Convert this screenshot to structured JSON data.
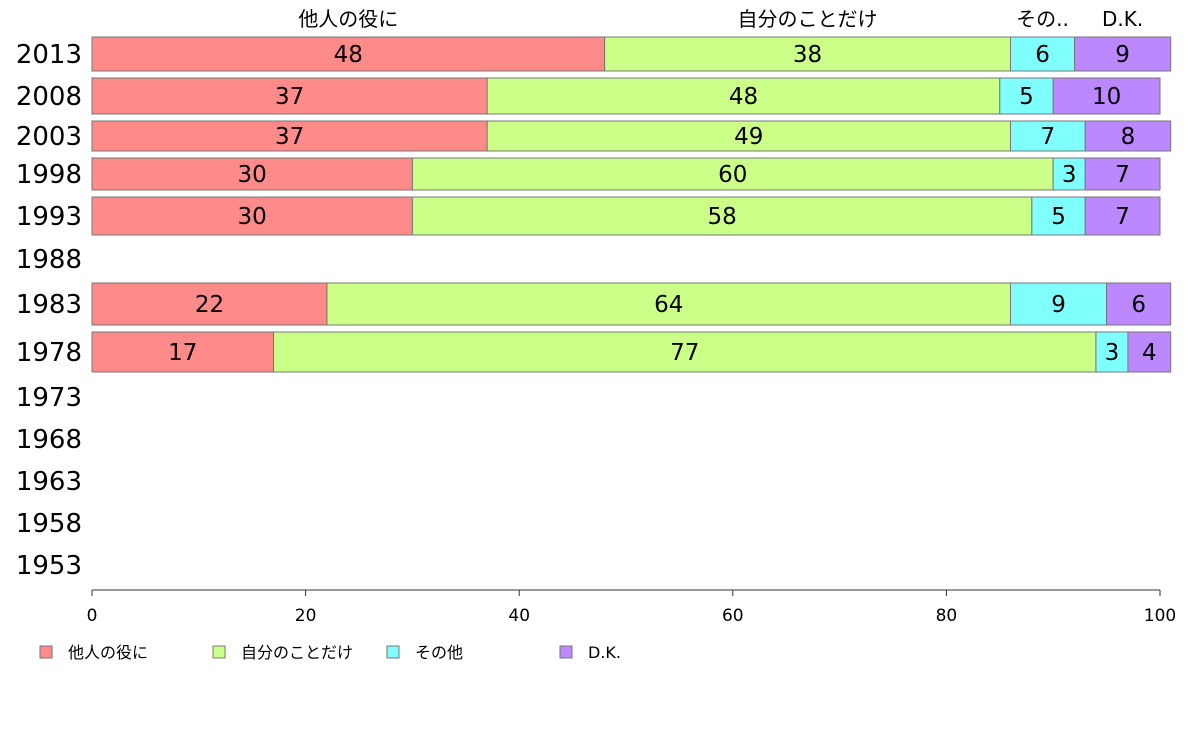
{
  "chart_data": {
    "type": "bar",
    "orientation": "horizontal",
    "stacked": true,
    "title": "",
    "xlabel": "",
    "ylabel": "",
    "xlim": [
      0,
      100
    ],
    "x_ticks": [
      "0",
      "20",
      "40",
      "60",
      "80",
      "100"
    ],
    "categories": [
      "2013",
      "2008",
      "2003",
      "1998",
      "1993",
      "1988",
      "1983",
      "1978",
      "1973",
      "1968",
      "1963",
      "1958",
      "1953"
    ],
    "column_headers": [
      "他人の役に",
      "自分のことだけ",
      "その..",
      "D.K."
    ],
    "legend_position": "bottom",
    "series": [
      {
        "name": "他人の役に",
        "color": "#ff8a8a",
        "values": [
          48,
          37,
          37,
          30,
          30,
          null,
          22,
          17,
          null,
          null,
          null,
          null,
          null
        ]
      },
      {
        "name": "自分のことだけ",
        "color": "#ccff88",
        "values": [
          38,
          48,
          49,
          60,
          58,
          null,
          64,
          77,
          null,
          null,
          null,
          null,
          null
        ]
      },
      {
        "name": "その他",
        "color": "#80ffff",
        "values": [
          6,
          5,
          7,
          3,
          5,
          null,
          9,
          3,
          null,
          null,
          null,
          null,
          null
        ]
      },
      {
        "name": "D.K.",
        "color": "#bb88ff",
        "values": [
          9,
          10,
          8,
          7,
          7,
          null,
          6,
          4,
          null,
          null,
          null,
          null,
          null
        ]
      }
    ]
  }
}
